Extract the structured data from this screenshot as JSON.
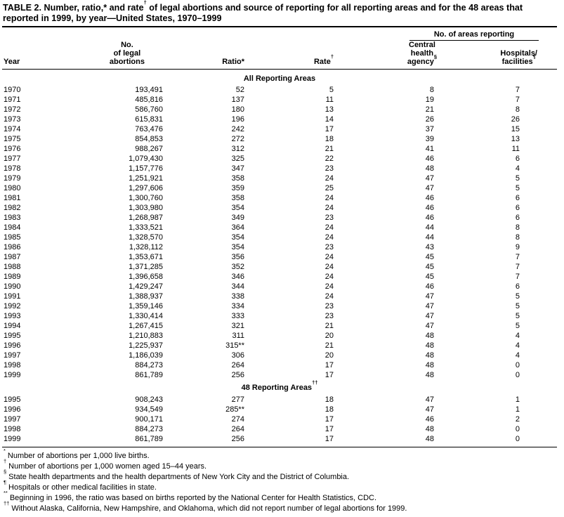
{
  "colors": {
    "ink": "#000000",
    "paper": "#ffffff"
  },
  "title": {
    "parts": [
      "TABLE 2. Number, ratio,* and rate",
      "†",
      " of legal abortions and source of reporting for all reporting areas and for the 48 areas that reported in 1999, by year—United States, 1970–1999"
    ]
  },
  "header": {
    "year": "Year",
    "abortions_lines": [
      "No.",
      "of legal",
      "abortions"
    ],
    "ratio": "Ratio*",
    "rate": "Rate",
    "rate_sup": "†",
    "areas_spanner": "No. of areas reporting",
    "central_lines": [
      "Central",
      "health",
      "agency"
    ],
    "central_sup": "§",
    "hospitals_line1": "Hospitals/",
    "hospitals_line2": "facilities",
    "hospitals_sup": "¶"
  },
  "sections": [
    {
      "heading": "All Reporting Areas",
      "heading_sup": "",
      "rows": [
        [
          "1970",
          "193,491",
          "52",
          "5",
          "8",
          "7"
        ],
        [
          "1971",
          "485,816",
          "137",
          "11",
          "19",
          "7"
        ],
        [
          "1972",
          "586,760",
          "180",
          "13",
          "21",
          "8"
        ],
        [
          "1973",
          "615,831",
          "196",
          "14",
          "26",
          "26"
        ],
        [
          "1974",
          "763,476",
          "242",
          "17",
          "37",
          "15"
        ],
        [
          "1975",
          "854,853",
          "272",
          "18",
          "39",
          "13"
        ],
        [
          "1976",
          "988,267",
          "312",
          "21",
          "41",
          "11"
        ],
        [
          "1977",
          "1,079,430",
          "325",
          "22",
          "46",
          "6"
        ],
        [
          "1978",
          "1,157,776",
          "347",
          "23",
          "48",
          "4"
        ],
        [
          "1979",
          "1,251,921",
          "358",
          "24",
          "47",
          "5"
        ],
        [
          "1980",
          "1,297,606",
          "359",
          "25",
          "47",
          "5"
        ],
        [
          "1981",
          "1,300,760",
          "358",
          "24",
          "46",
          "6"
        ],
        [
          "1982",
          "1,303,980",
          "354",
          "24",
          "46",
          "6"
        ],
        [
          "1983",
          "1,268,987",
          "349",
          "23",
          "46",
          "6"
        ],
        [
          "1984",
          "1,333,521",
          "364",
          "24",
          "44",
          "8"
        ],
        [
          "1985",
          "1,328,570",
          "354",
          "24",
          "44",
          "8"
        ],
        [
          "1986",
          "1,328,112",
          "354",
          "23",
          "43",
          "9"
        ],
        [
          "1987",
          "1,353,671",
          "356",
          "24",
          "45",
          "7"
        ],
        [
          "1988",
          "1,371,285",
          "352",
          "24",
          "45",
          "7"
        ],
        [
          "1989",
          "1,396,658",
          "346",
          "24",
          "45",
          "7"
        ],
        [
          "1990",
          "1,429,247",
          "344",
          "24",
          "46",
          "6"
        ],
        [
          "1991",
          "1,388,937",
          "338",
          "24",
          "47",
          "5"
        ],
        [
          "1992",
          "1,359,146",
          "334",
          "23",
          "47",
          "5"
        ],
        [
          "1993",
          "1,330,414",
          "333",
          "23",
          "47",
          "5"
        ],
        [
          "1994",
          "1,267,415",
          "321",
          "21",
          "47",
          "5"
        ],
        [
          "1995",
          "1,210,883",
          "311",
          "20",
          "48",
          "4"
        ],
        [
          "1996",
          "1,225,937",
          "315**",
          "21",
          "48",
          "4"
        ],
        [
          "1997",
          "1,186,039",
          "306",
          "20",
          "48",
          "4"
        ],
        [
          "1998",
          "884,273",
          "264",
          "17",
          "48",
          "0"
        ],
        [
          "1999",
          "861,789",
          "256",
          "17",
          "48",
          "0"
        ]
      ]
    },
    {
      "heading": "48 Reporting Areas",
      "heading_sup": "††",
      "rows": [
        [
          "1995",
          "908,243",
          "277",
          "18",
          "47",
          "1"
        ],
        [
          "1996",
          "934,549",
          "285**",
          "18",
          "47",
          "1"
        ],
        [
          "1997",
          "900,171",
          "274",
          "17",
          "46",
          "2"
        ],
        [
          "1998",
          "884,273",
          "264",
          "17",
          "48",
          "0"
        ],
        [
          "1999",
          "861,789",
          "256",
          "17",
          "48",
          "0"
        ]
      ]
    }
  ],
  "footnotes": [
    {
      "marker": "*",
      "text": "Number of abortions per 1,000 live births."
    },
    {
      "marker": "†",
      "text": "Number of abortions per 1,000 women aged 15–44 years."
    },
    {
      "marker": "§",
      "text": "State health departments and the health departments of New York City and the District of Columbia."
    },
    {
      "marker": "¶",
      "text": "Hospitals or other medical facilities in state."
    },
    {
      "marker": "**",
      "text": "Beginning in 1996, the ratio was based on births reported by the National Center for Health Statistics, CDC."
    },
    {
      "marker": "††",
      "text": "Without Alaska, California, New Hampshire, and Oklahoma, which did not report number of legal abortions for 1999."
    }
  ]
}
